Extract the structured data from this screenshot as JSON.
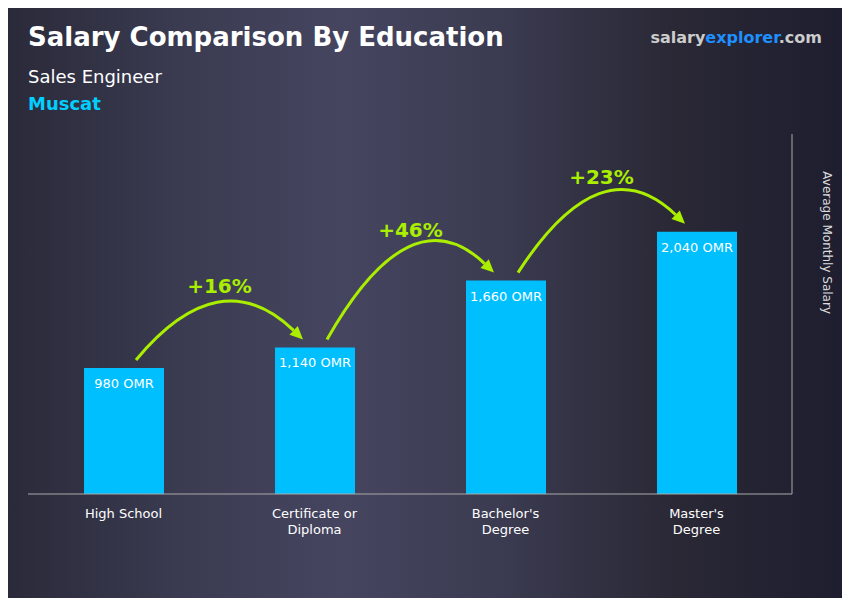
{
  "chart_data": {
    "type": "bar",
    "title": "Salary Comparison By Education",
    "subtitle": "Sales Engineer",
    "annotations": [
      "Muscat",
      "salary",
      "explorer",
      ".com"
    ],
    "change_labels": [
      "+16%",
      "+46%",
      "+23%"
    ],
    "ylabel": "Average Monthly Salary",
    "categories": [
      "High School",
      "Certificate or\nDiploma",
      "Bachelor's\nDegree",
      "Master's\nDegree"
    ],
    "values": [
      980,
      1140,
      1660,
      2040
    ],
    "value_labels": [
      "980 OMR",
      "1,140 OMR",
      "1,660 OMR",
      "2,040 OMR"
    ],
    "data_labels": true,
    "color": "#00BFFF",
    "ylim": [
      0,
      2800
    ],
    "grid": false,
    "tick_labels": "x"
  }
}
